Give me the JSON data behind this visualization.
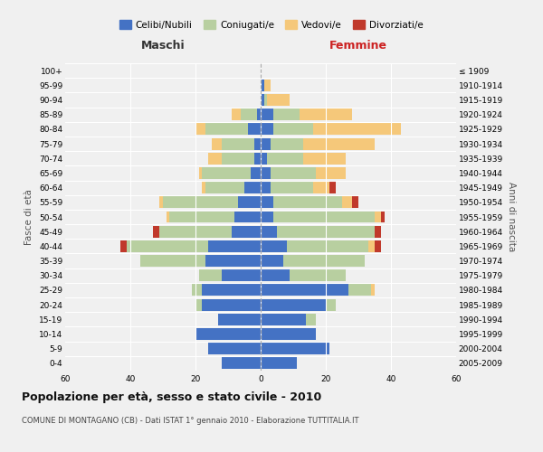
{
  "age_groups": [
    "0-4",
    "5-9",
    "10-14",
    "15-19",
    "20-24",
    "25-29",
    "30-34",
    "35-39",
    "40-44",
    "45-49",
    "50-54",
    "55-59",
    "60-64",
    "65-69",
    "70-74",
    "75-79",
    "80-84",
    "85-89",
    "90-94",
    "95-99",
    "100+"
  ],
  "birth_years": [
    "2005-2009",
    "2000-2004",
    "1995-1999",
    "1990-1994",
    "1985-1989",
    "1980-1984",
    "1975-1979",
    "1970-1974",
    "1965-1969",
    "1960-1964",
    "1955-1959",
    "1950-1954",
    "1945-1949",
    "1940-1944",
    "1935-1939",
    "1930-1934",
    "1925-1929",
    "1920-1924",
    "1915-1919",
    "1910-1914",
    "≤ 1909"
  ],
  "maschi": {
    "celibi": [
      12,
      16,
      20,
      13,
      18,
      18,
      12,
      17,
      16,
      9,
      8,
      7,
      5,
      3,
      2,
      2,
      4,
      1,
      0,
      0,
      0
    ],
    "coniugati": [
      0,
      0,
      0,
      0,
      2,
      3,
      7,
      20,
      25,
      22,
      20,
      23,
      12,
      15,
      10,
      10,
      13,
      5,
      0,
      0,
      0
    ],
    "vedovi": [
      0,
      0,
      0,
      0,
      0,
      0,
      0,
      0,
      0,
      0,
      1,
      1,
      1,
      1,
      4,
      3,
      3,
      3,
      0,
      0,
      0
    ],
    "divorziati": [
      0,
      0,
      0,
      0,
      0,
      0,
      0,
      0,
      2,
      2,
      0,
      0,
      0,
      0,
      0,
      0,
      0,
      0,
      0,
      0,
      0
    ]
  },
  "femmine": {
    "nubili": [
      11,
      21,
      17,
      14,
      20,
      27,
      9,
      7,
      8,
      5,
      4,
      4,
      3,
      3,
      2,
      3,
      4,
      4,
      1,
      1,
      0
    ],
    "coniugate": [
      0,
      0,
      0,
      3,
      3,
      7,
      17,
      25,
      25,
      30,
      31,
      21,
      13,
      14,
      11,
      10,
      12,
      8,
      1,
      0,
      0
    ],
    "vedove": [
      0,
      0,
      0,
      0,
      0,
      1,
      0,
      0,
      2,
      0,
      2,
      3,
      5,
      9,
      13,
      22,
      27,
      16,
      7,
      2,
      0
    ],
    "divorziate": [
      0,
      0,
      0,
      0,
      0,
      0,
      0,
      0,
      2,
      2,
      1,
      2,
      2,
      0,
      0,
      0,
      0,
      0,
      0,
      0,
      0
    ]
  },
  "colors": {
    "celibi_nubili": "#4472c4",
    "coniugati": "#b8cfa0",
    "vedovi": "#f5c87a",
    "divorziati": "#c0392b"
  },
  "title": "Popolazione per età, sesso e stato civile - 2010",
  "subtitle": "COMUNE DI MONTAGANO (CB) - Dati ISTAT 1° gennaio 2010 - Elaborazione TUTTITALIA.IT",
  "xlabel_left": "Maschi",
  "xlabel_right": "Femmine",
  "ylabel_left": "Fasce di età",
  "ylabel_right": "Anni di nascita",
  "xlim": 60,
  "bar_height": 0.8,
  "legend_labels": [
    "Celibi/Nubili",
    "Coniugati/e",
    "Vedovi/e",
    "Divorziati/e"
  ],
  "background_color": "#f0f0f0"
}
